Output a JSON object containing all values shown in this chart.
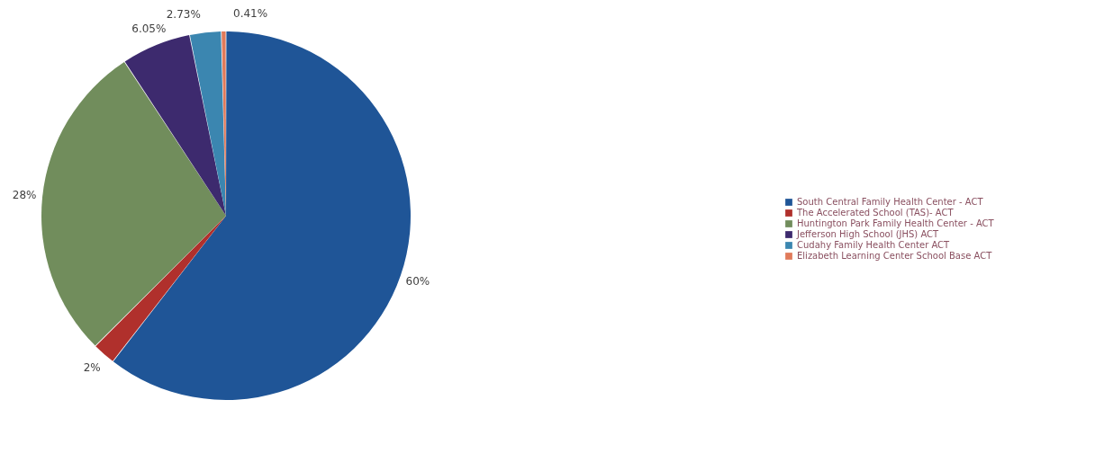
{
  "chart_data": {
    "type": "pie",
    "categories": [
      "South Central Family Health Center - ACT",
      "The Accelerated School (TAS)- ACT",
      "Huntington Park Family Health Center - ACT",
      "Jefferson High School (JHS) ACT",
      "Cudahy Family Health Center ACT",
      "Elizabeth Learning Center School Base ACT"
    ],
    "values": [
      60,
      2,
      28,
      6.05,
      2.73,
      0.41
    ],
    "colors": [
      "#1f5597",
      "#b0302c",
      "#718d5c",
      "#3d2a6e",
      "#3b86b0",
      "#e07a5a"
    ],
    "value_labels": [
      "60%",
      "2%",
      "28%",
      "6.05%",
      "2.73%",
      "0.41%"
    ],
    "legend": "right"
  }
}
